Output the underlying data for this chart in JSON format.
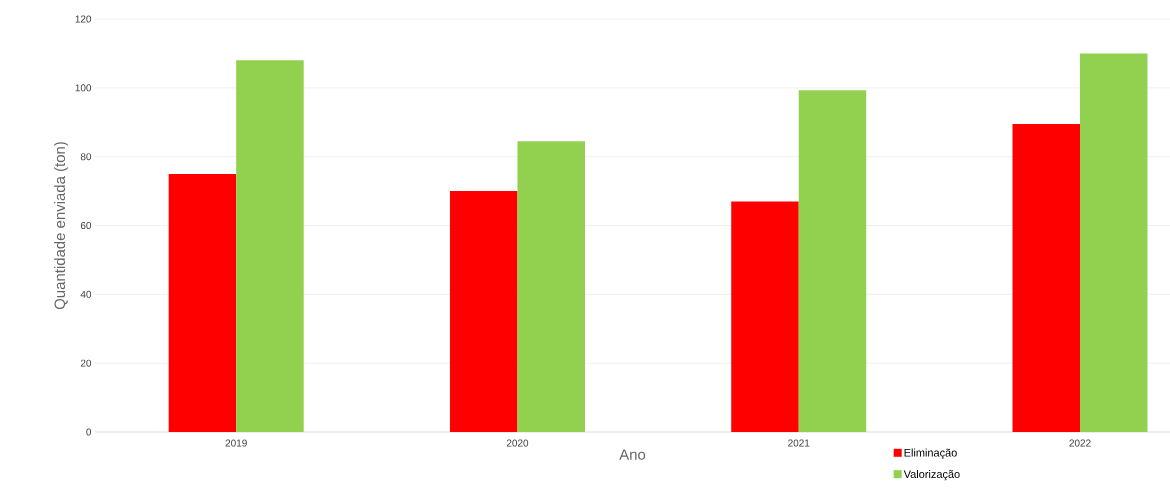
{
  "chart_data": {
    "type": "bar",
    "xlabel": "Ano",
    "ylabel": "Quantidade enviada (ton)",
    "categories": [
      "2019",
      "2020",
      "2021",
      "2022"
    ],
    "series": [
      {
        "name": "Eliminação",
        "color": "#ff0000",
        "values": [
          75,
          70,
          67,
          89.5
        ]
      },
      {
        "name": "Valorização",
        "color": "#92d050",
        "values": [
          108,
          84.5,
          99.3,
          110
        ]
      }
    ],
    "ylim": [
      0,
      120
    ],
    "yticks": [
      0,
      20,
      40,
      60,
      80,
      100,
      120
    ],
    "grid": "y",
    "legend": "bottom right"
  }
}
